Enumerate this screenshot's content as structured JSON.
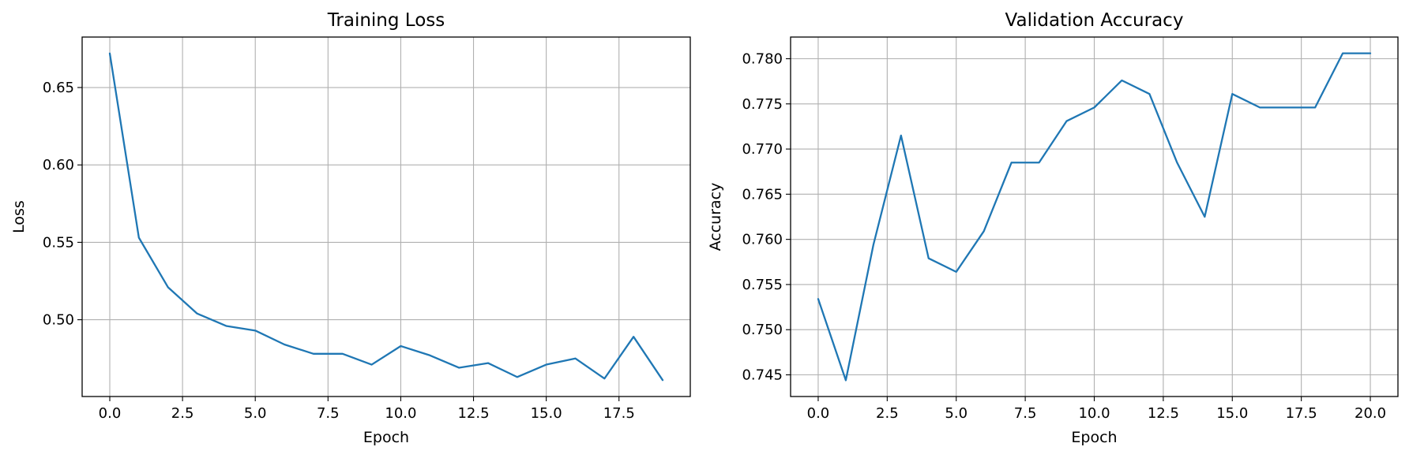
{
  "chart_data": [
    {
      "type": "line",
      "title": "Training Loss",
      "xlabel": "Epoch",
      "ylabel": "Loss",
      "xlim": [
        -0.95,
        19.95
      ],
      "ylim": [
        0.4504,
        0.6826
      ],
      "xticks": [
        0.0,
        2.5,
        5.0,
        7.5,
        10.0,
        12.5,
        15.0,
        17.5
      ],
      "xtick_labels": [
        "0.0",
        "2.5",
        "5.0",
        "7.5",
        "10.0",
        "12.5",
        "15.0",
        "17.5"
      ],
      "yticks": [
        0.5,
        0.55,
        0.6,
        0.65
      ],
      "ytick_labels": [
        "0.50",
        "0.55",
        "0.60",
        "0.65"
      ],
      "grid": true,
      "line_color": "#1f77b4",
      "series": [
        {
          "x": [
            0,
            1,
            2,
            3,
            4,
            5,
            6,
            7,
            8,
            9,
            10,
            11,
            12,
            13,
            14,
            15,
            16,
            17,
            18,
            19
          ],
          "values": [
            0.672,
            0.553,
            0.521,
            0.504,
            0.496,
            0.493,
            0.484,
            0.478,
            0.478,
            0.471,
            0.483,
            0.477,
            0.469,
            0.472,
            0.463,
            0.471,
            0.475,
            0.462,
            0.489,
            0.461
          ]
        }
      ]
    },
    {
      "type": "line",
      "title": "Validation Accuracy",
      "xlabel": "Epoch",
      "ylabel": "Accuracy",
      "xlim": [
        -1.0,
        21.0
      ],
      "ylim": [
        0.7426,
        0.7824
      ],
      "xticks": [
        0.0,
        2.5,
        5.0,
        7.5,
        10.0,
        12.5,
        15.0,
        17.5,
        20.0
      ],
      "xtick_labels": [
        "0.0",
        "2.5",
        "5.0",
        "7.5",
        "10.0",
        "12.5",
        "15.0",
        "17.5",
        "20.0"
      ],
      "yticks": [
        0.745,
        0.75,
        0.755,
        0.76,
        0.765,
        0.77,
        0.775,
        0.78
      ],
      "ytick_labels": [
        "0.745",
        "0.750",
        "0.755",
        "0.760",
        "0.765",
        "0.770",
        "0.775",
        "0.780"
      ],
      "grid": true,
      "line_color": "#1f77b4",
      "series": [
        {
          "x": [
            0,
            1,
            2,
            3,
            4,
            5,
            6,
            7,
            8,
            9,
            10,
            11,
            12,
            13,
            14,
            15,
            16,
            17,
            18,
            19,
            20
          ],
          "values": [
            0.7534,
            0.7444,
            0.7594,
            0.7715,
            0.7579,
            0.7564,
            0.7609,
            0.7685,
            0.7685,
            0.7731,
            0.7746,
            0.7776,
            0.7761,
            0.7685,
            0.7625,
            0.7761,
            0.7746,
            0.7746,
            0.7746,
            0.7806,
            0.7806
          ]
        }
      ]
    }
  ]
}
